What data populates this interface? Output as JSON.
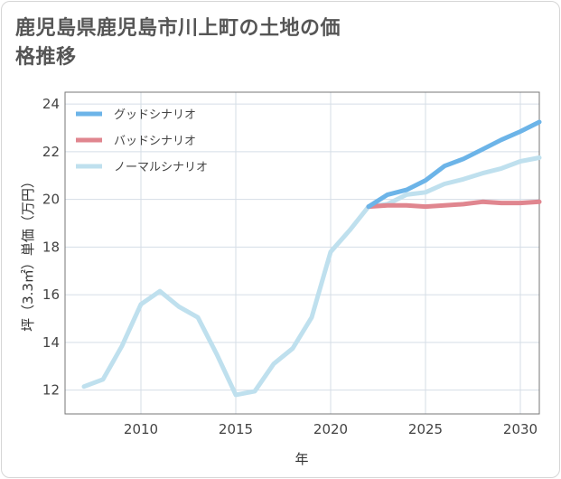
{
  "title": "鹿児島県鹿児島市川上町の土地の価格推移",
  "chart_data": {
    "type": "line",
    "title": "鹿児島県鹿児島市川上町の土地の価格推移",
    "xlabel": "年",
    "ylabel": "坪（3.3㎡）単価（万円）",
    "xlim": [
      2006,
      2031
    ],
    "ylim": [
      11,
      24.5
    ],
    "x_ticks": [
      2010,
      2015,
      2020,
      2025,
      2030
    ],
    "y_ticks": [
      12,
      14,
      16,
      18,
      20,
      22,
      24
    ],
    "grid": true,
    "legend_position": "top-left",
    "series": [
      {
        "name": "グッドシナリオ",
        "color": "#6cb4e8",
        "x": [
          2022,
          2023,
          2024,
          2025,
          2026,
          2027,
          2028,
          2029,
          2030,
          2031
        ],
        "values": [
          19.7,
          20.2,
          20.4,
          20.8,
          21.4,
          21.7,
          22.1,
          22.5,
          22.85,
          23.25
        ]
      },
      {
        "name": "バッドシナリオ",
        "color": "#e0868f",
        "x": [
          2022,
          2023,
          2024,
          2025,
          2026,
          2027,
          2028,
          2029,
          2030,
          2031
        ],
        "values": [
          19.7,
          19.75,
          19.75,
          19.7,
          19.75,
          19.8,
          19.9,
          19.85,
          19.85,
          19.9
        ]
      },
      {
        "name": "ノーマルシナリオ",
        "color": "#bfe0ee",
        "x": [
          2007,
          2008,
          2009,
          2010,
          2011,
          2012,
          2013,
          2014,
          2015,
          2016,
          2017,
          2018,
          2019,
          2020,
          2021,
          2022,
          2023,
          2024,
          2025,
          2026,
          2027,
          2028,
          2029,
          2030,
          2031
        ],
        "values": [
          12.15,
          12.45,
          13.85,
          15.6,
          16.15,
          15.5,
          15.05,
          13.5,
          11.8,
          11.95,
          13.1,
          13.75,
          15.05,
          17.8,
          18.7,
          19.7,
          19.8,
          20.2,
          20.3,
          20.65,
          20.85,
          21.1,
          21.3,
          21.6,
          21.75
        ]
      }
    ]
  }
}
